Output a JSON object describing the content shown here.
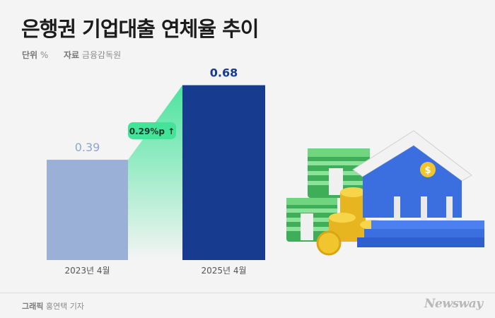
{
  "header": {
    "title": "은행권 기업대출 연체율 추이",
    "unit_key": "단위",
    "unit_value": "%",
    "source_key": "자료",
    "source_value": "금융감독원"
  },
  "chart_data": {
    "type": "bar",
    "categories": [
      "2023년 4월",
      "2025년 4월"
    ],
    "values": [
      0.39,
      0.68
    ],
    "value_labels": [
      "0.39",
      "0.68"
    ],
    "colors": [
      "#9ab0d6",
      "#173c8f"
    ],
    "label_colors": [
      "#8fa6cf",
      "#173c8f"
    ],
    "annotation": {
      "text": "0.29%p ↑",
      "color": "#43e39a",
      "text_color": "#0d3b2b"
    },
    "ylim": [
      0,
      0.72
    ]
  },
  "footer": {
    "credit_key": "그래픽",
    "credit_value": "홍연택 기자",
    "logo": "Newsway"
  }
}
